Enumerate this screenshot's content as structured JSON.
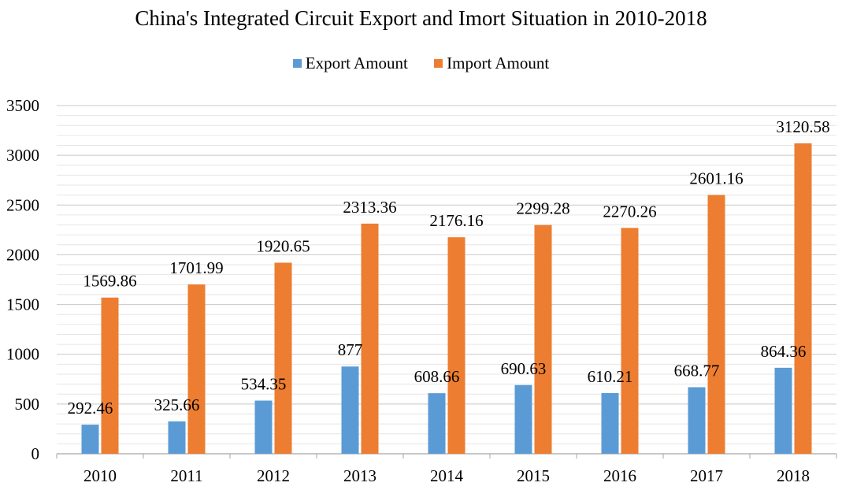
{
  "chart_data": {
    "type": "bar",
    "title": "China's Integrated Circuit Export and Imort Situation in 2010-2018",
    "xlabel": "",
    "ylabel": "",
    "categories": [
      "2010",
      "2011",
      "2012",
      "2013",
      "2014",
      "2015",
      "2016",
      "2017",
      "2018"
    ],
    "series": [
      {
        "name": "Export Amount",
        "color": "#5B9BD5",
        "values": [
          292.46,
          325.66,
          534.35,
          877,
          608.66,
          690.63,
          610.21,
          668.77,
          864.36
        ],
        "labels": [
          "292.46",
          "325.66",
          "534.35",
          "877",
          "608.66",
          "690.63",
          "610.21",
          "668.77",
          "864.36"
        ]
      },
      {
        "name": "Import Amount",
        "color": "#ED7D31",
        "values": [
          1569.86,
          1701.99,
          1920.65,
          2313.36,
          2176.16,
          2299.28,
          2270.26,
          2601.16,
          3120.58
        ],
        "labels": [
          "1569.86",
          "1701.99",
          "1920.65",
          "2313.36",
          "2176.16",
          "2299.28",
          "2270.26",
          "2601.16",
          "3120.58"
        ]
      }
    ],
    "ylim": [
      0,
      3500
    ],
    "yticks": [
      "0",
      "500",
      "1000",
      "1500",
      "2000",
      "2500",
      "3000",
      "3500"
    ],
    "grid": true,
    "legend_position": "top-center"
  }
}
